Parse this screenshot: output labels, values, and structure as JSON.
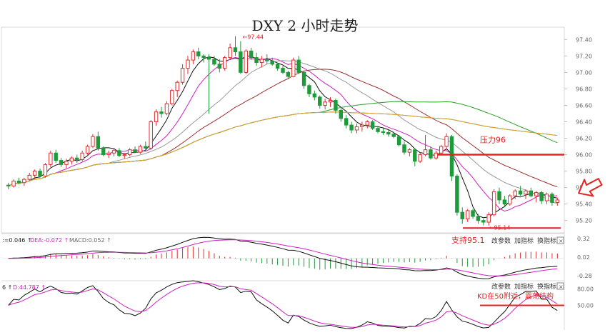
{
  "title": "DXY 2 小时走势",
  "colors": {
    "up": "#e03030",
    "down": "#1f9a3a",
    "ma5": "#111111",
    "ma10": "#d020c0",
    "ma20": "#999999",
    "ma30": "#a03030",
    "ma60": "#2aa02a",
    "ma120": "#1e90d0",
    "ma250": "#e8a020",
    "red": "#e82020"
  },
  "chart_data": [
    {
      "type": "candlestick",
      "title": "DXY 2 小时走势",
      "ylim": [
        95.05,
        97.55
      ],
      "yticks": [
        "97.40",
        "97.20",
        "97.00",
        "96.80",
        "96.60",
        "96.40",
        "96.20",
        "96.00",
        "95.80",
        "95.60",
        "95.40",
        "95.20"
      ],
      "ohlc": [
        [
          95.63,
          95.66,
          95.58,
          95.62
        ],
        [
          95.62,
          95.7,
          95.6,
          95.68
        ],
        [
          95.68,
          95.72,
          95.64,
          95.66
        ],
        [
          95.66,
          95.72,
          95.62,
          95.7
        ],
        [
          95.7,
          95.78,
          95.68,
          95.75
        ],
        [
          95.75,
          95.82,
          95.7,
          95.8
        ],
        [
          95.8,
          95.83,
          95.72,
          95.74
        ],
        [
          95.74,
          95.9,
          95.72,
          95.88
        ],
        [
          95.88,
          96.05,
          95.85,
          96.02
        ],
        [
          96.02,
          96.06,
          95.9,
          95.93
        ],
        [
          95.93,
          95.96,
          95.85,
          95.88
        ],
        [
          95.88,
          95.95,
          95.84,
          95.92
        ],
        [
          95.92,
          95.98,
          95.88,
          95.96
        ],
        [
          95.96,
          96.0,
          95.9,
          95.94
        ],
        [
          95.94,
          96.05,
          95.92,
          96.02
        ],
        [
          96.02,
          96.12,
          96.0,
          96.1
        ],
        [
          96.1,
          96.25,
          96.08,
          96.22
        ],
        [
          96.22,
          96.28,
          96.05,
          96.08
        ],
        [
          96.08,
          96.1,
          95.98,
          96.0
        ],
        [
          96.0,
          96.05,
          95.96,
          96.02
        ],
        [
          96.02,
          96.08,
          95.98,
          96.05
        ],
        [
          96.05,
          96.08,
          95.97,
          95.99
        ],
        [
          95.99,
          96.02,
          95.95,
          96.0
        ],
        [
          96.0,
          96.08,
          95.98,
          96.06
        ],
        [
          96.06,
          96.1,
          96.02,
          96.03
        ],
        [
          96.03,
          96.12,
          96.01,
          96.1
        ],
        [
          96.1,
          96.16,
          96.05,
          96.08
        ],
        [
          96.08,
          96.42,
          96.06,
          96.4
        ],
        [
          96.4,
          96.55,
          96.35,
          96.52
        ],
        [
          96.52,
          96.58,
          96.45,
          96.5
        ],
        [
          96.5,
          96.65,
          96.48,
          96.62
        ],
        [
          96.62,
          96.8,
          96.6,
          96.78
        ],
        [
          96.78,
          96.9,
          96.7,
          96.88
        ],
        [
          96.88,
          97.1,
          96.85,
          97.05
        ],
        [
          97.05,
          97.2,
          96.98,
          97.15
        ],
        [
          97.15,
          97.28,
          97.1,
          97.25
        ],
        [
          97.25,
          97.3,
          97.16,
          97.2
        ],
        [
          97.2,
          97.22,
          97.12,
          97.18
        ],
        [
          97.18,
          97.22,
          96.5,
          97.16
        ],
        [
          97.16,
          97.2,
          97.08,
          97.1
        ],
        [
          97.1,
          97.16,
          97.0,
          97.05
        ],
        [
          97.05,
          97.2,
          97.02,
          97.18
        ],
        [
          97.18,
          97.35,
          97.15,
          97.3
        ],
        [
          97.3,
          97.44,
          97.2,
          97.25
        ],
        [
          97.25,
          97.38,
          96.98,
          97.0
        ],
        [
          97.0,
          97.28,
          96.98,
          97.26
        ],
        [
          97.26,
          97.3,
          97.15,
          97.18
        ],
        [
          97.18,
          97.24,
          97.08,
          97.12
        ],
        [
          97.12,
          97.2,
          97.06,
          97.16
        ],
        [
          97.16,
          97.22,
          97.1,
          97.14
        ],
        [
          97.14,
          97.18,
          97.08,
          97.1
        ],
        [
          97.1,
          97.12,
          97.02,
          97.05
        ],
        [
          97.05,
          97.08,
          96.98,
          97.0
        ],
        [
          97.0,
          97.02,
          96.92,
          96.95
        ],
        [
          96.95,
          97.18,
          96.94,
          97.15
        ],
        [
          97.15,
          97.2,
          96.98,
          97.0
        ],
        [
          97.0,
          97.02,
          96.8,
          96.84
        ],
        [
          96.84,
          96.86,
          96.7,
          96.74
        ],
        [
          96.74,
          96.78,
          96.66,
          96.7
        ],
        [
          96.7,
          96.72,
          96.56,
          96.6
        ],
        [
          96.6,
          96.68,
          96.55,
          96.64
        ],
        [
          96.64,
          96.7,
          96.58,
          96.66
        ],
        [
          96.66,
          96.68,
          96.5,
          96.54
        ],
        [
          96.54,
          96.56,
          96.4,
          96.44
        ],
        [
          96.44,
          96.48,
          96.32,
          96.36
        ],
        [
          96.36,
          96.4,
          96.26,
          96.3
        ],
        [
          96.3,
          96.38,
          96.26,
          96.34
        ],
        [
          96.34,
          96.4,
          96.28,
          96.36
        ],
        [
          96.36,
          96.42,
          96.32,
          96.4
        ],
        [
          96.4,
          96.42,
          96.3,
          96.32
        ],
        [
          96.32,
          96.35,
          96.26,
          96.28
        ],
        [
          96.28,
          96.32,
          96.24,
          96.27
        ],
        [
          96.27,
          96.3,
          96.22,
          96.25
        ],
        [
          96.25,
          96.28,
          96.2,
          96.22
        ],
        [
          96.22,
          96.24,
          96.1,
          96.12
        ],
        [
          96.12,
          96.16,
          96.0,
          96.03
        ],
        [
          96.03,
          96.08,
          95.98,
          96.06
        ],
        [
          96.06,
          96.08,
          95.86,
          95.92
        ],
        [
          95.92,
          96.02,
          95.9,
          96.0
        ],
        [
          96.0,
          96.24,
          95.98,
          96.06
        ],
        [
          96.06,
          96.1,
          95.94,
          95.96
        ],
        [
          95.96,
          96.05,
          95.94,
          96.02
        ],
        [
          96.02,
          96.12,
          96.0,
          96.1
        ],
        [
          96.1,
          96.26,
          96.06,
          96.22
        ],
        [
          96.22,
          96.24,
          95.68,
          95.74
        ],
        [
          95.74,
          95.76,
          95.26,
          95.3
        ],
        [
          95.3,
          95.36,
          95.16,
          95.22
        ],
        [
          95.22,
          95.34,
          95.18,
          95.32
        ],
        [
          95.32,
          95.34,
          95.22,
          95.25
        ],
        [
          95.25,
          95.28,
          95.16,
          95.2
        ],
        [
          95.2,
          95.22,
          95.14,
          95.18
        ],
        [
          95.18,
          95.3,
          95.14,
          95.27
        ],
        [
          95.27,
          95.58,
          95.25,
          95.55
        ],
        [
          95.55,
          95.6,
          95.4,
          95.45
        ],
        [
          95.45,
          95.5,
          95.36,
          95.4
        ],
        [
          95.4,
          95.52,
          95.38,
          95.5
        ],
        [
          95.5,
          95.58,
          95.46,
          95.56
        ],
        [
          95.56,
          95.62,
          95.5,
          95.52
        ],
        [
          95.52,
          95.58,
          95.46,
          95.56
        ],
        [
          95.56,
          95.6,
          95.48,
          95.5
        ],
        [
          95.5,
          95.56,
          95.42,
          95.54
        ],
        [
          95.54,
          95.56,
          95.4,
          95.44
        ],
        [
          95.44,
          95.54,
          95.4,
          95.52
        ],
        [
          95.52,
          95.54,
          95.38,
          95.42
        ],
        [
          95.42,
          95.48,
          95.38,
          95.45
        ]
      ],
      "moving_averages": [
        {
          "name": "MA5",
          "colorKey": "ma5",
          "period": 5
        },
        {
          "name": "MA10",
          "colorKey": "ma10",
          "period": 10
        },
        {
          "name": "MA20",
          "colorKey": "ma20",
          "period": 20
        },
        {
          "name": "MA30",
          "colorKey": "ma30",
          "period": 30
        },
        {
          "name": "MA60",
          "colorKey": "ma60",
          "period": 60
        },
        {
          "name": "MA120",
          "colorKey": "ma120",
          "period": 120
        },
        {
          "name": "MA250",
          "colorKey": "ma250",
          "period": 250
        }
      ],
      "annotations": {
        "high": "97.44",
        "low": "95.14",
        "resistance": {
          "label": "压力96",
          "value": 96.0
        },
        "support": {
          "label": "支持95.1",
          "value": 95.1
        }
      }
    },
    {
      "type": "macd",
      "header": {
        "dif": "=0.046",
        "dea": "DEA:-0.072",
        "macd": "MACD:0.052"
      },
      "yticks": [
        "0.32",
        "0.02",
        "-0.28"
      ],
      "ylim": [
        -0.36,
        0.4
      ],
      "buttons": [
        "改参数",
        "加指标",
        "换指标"
      ]
    },
    {
      "type": "kd",
      "header": {
        "k": "6",
        "d": "D:44.787"
      },
      "yticks": [
        "80.00",
        "50.00"
      ],
      "ylim": [
        5,
        95
      ],
      "buttons": [
        "改参数",
        "加指标",
        "换指标"
      ],
      "annotation": {
        "label": "KD在50附近，震荡结构",
        "value": 50
      }
    }
  ]
}
